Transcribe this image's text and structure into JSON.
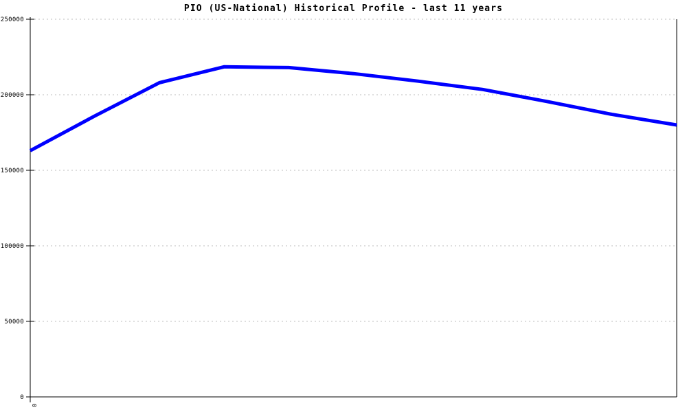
{
  "window": {
    "background": "#ffffff"
  },
  "chart_data": {
    "type": "line",
    "title": "PIO (US-National) Historical Profile - last 11 years",
    "xlabel": "",
    "ylabel": "",
    "x": [
      0,
      1,
      2,
      3,
      4,
      5,
      6,
      7,
      8,
      9,
      10
    ],
    "series": [
      {
        "name": "pio-us-national",
        "color": "#0000ff",
        "line_width": 5,
        "values": [
          163000,
          186000,
          208000,
          218500,
          218000,
          214000,
          209000,
          203500,
          195500,
          187000,
          180000
        ]
      }
    ],
    "xlim": [
      0,
      10
    ],
    "ylim": [
      0,
      250000
    ],
    "yticks": [
      0,
      50000,
      100000,
      150000,
      200000,
      250000
    ],
    "ytick_labels": [
      "0",
      "50000",
      "100000",
      "150000",
      "200000",
      "250000"
    ],
    "xticks": [
      0
    ],
    "xtick_labels": [
      "0"
    ],
    "grid": {
      "horizontal": true,
      "vertical": false,
      "style": "dashed",
      "color": "#bdbdbd"
    },
    "axis_color": "#000000",
    "label_color": "#000000",
    "legend_position": "none"
  }
}
